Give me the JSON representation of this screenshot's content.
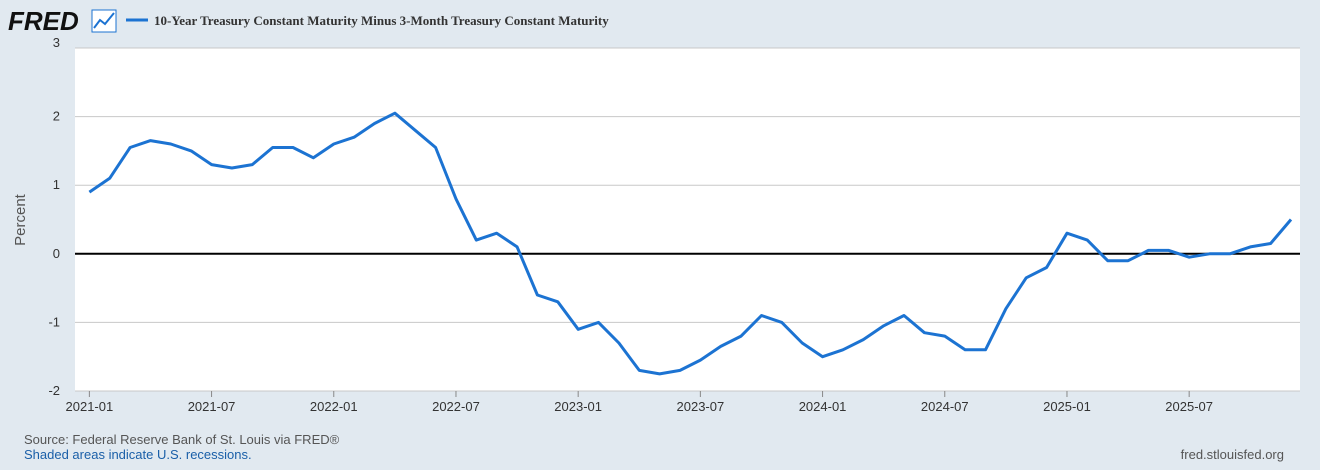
{
  "chart_data": {
    "type": "line",
    "logo": "FRED",
    "y_label": "Percent",
    "source": "Source: Federal Reserve Bank of St. Louis via FRED®",
    "note": "Shaded areas indicate U.S. recessions.",
    "credit": "fred.stlouisfed.org",
    "x": [
      "2021-01",
      "2021-02",
      "2021-03",
      "2021-04",
      "2021-05",
      "2021-06",
      "2021-07",
      "2021-08",
      "2021-09",
      "2021-10",
      "2021-11",
      "2021-12",
      "2022-01",
      "2022-02",
      "2022-03",
      "2022-04",
      "2022-05",
      "2022-06",
      "2022-07",
      "2022-08",
      "2022-09",
      "2022-10",
      "2022-11",
      "2022-12",
      "2023-01",
      "2023-02",
      "2023-03",
      "2023-04",
      "2023-05",
      "2023-06",
      "2023-07",
      "2023-08",
      "2023-09",
      "2023-10",
      "2023-11",
      "2023-12",
      "2024-01",
      "2024-02",
      "2024-03",
      "2024-04",
      "2024-05",
      "2024-06",
      "2024-07",
      "2024-08",
      "2024-09",
      "2024-10",
      "2024-11",
      "2024-12",
      "2025-01",
      "2025-02",
      "2025-03",
      "2025-04",
      "2025-05",
      "2025-06",
      "2025-07",
      "2025-08",
      "2025-09",
      "2025-10",
      "2025-11",
      "2025-12"
    ],
    "series": [
      {
        "name": "10-Year Treasury Constant Maturity Minus 3-Month Treasury Constant Maturity",
        "color": "#1c73d2",
        "values": [
          0.9,
          1.1,
          1.55,
          1.65,
          1.6,
          1.5,
          1.3,
          1.25,
          1.3,
          1.55,
          1.55,
          1.4,
          1.6,
          1.7,
          1.9,
          2.05,
          1.8,
          1.55,
          0.8,
          0.2,
          0.3,
          0.1,
          -0.6,
          -0.7,
          -1.1,
          -1.0,
          -1.3,
          -1.7,
          -1.75,
          -1.7,
          -1.55,
          -1.35,
          -1.2,
          -0.9,
          -1.0,
          -1.3,
          -1.5,
          -1.4,
          -1.25,
          -1.05,
          -0.9,
          -1.15,
          -1.2,
          -1.4,
          -1.4,
          -0.8,
          -0.35,
          -0.2,
          0.3,
          0.2,
          -0.1,
          -0.1,
          0.05,
          0.05,
          -0.05,
          0.0,
          0.0,
          0.1,
          0.15,
          0.5
        ]
      }
    ],
    "xlim": [
      "2020-12",
      "2025-12"
    ],
    "xticks": [
      "2021-01",
      "2021-07",
      "2022-01",
      "2022-07",
      "2023-01",
      "2023-07",
      "2024-01",
      "2024-07",
      "2025-01",
      "2025-07"
    ],
    "ylim": [
      -2,
      3
    ],
    "yticks": [
      -2,
      -1,
      0,
      1,
      2,
      3
    ],
    "grid": true,
    "zero_line": true
  }
}
